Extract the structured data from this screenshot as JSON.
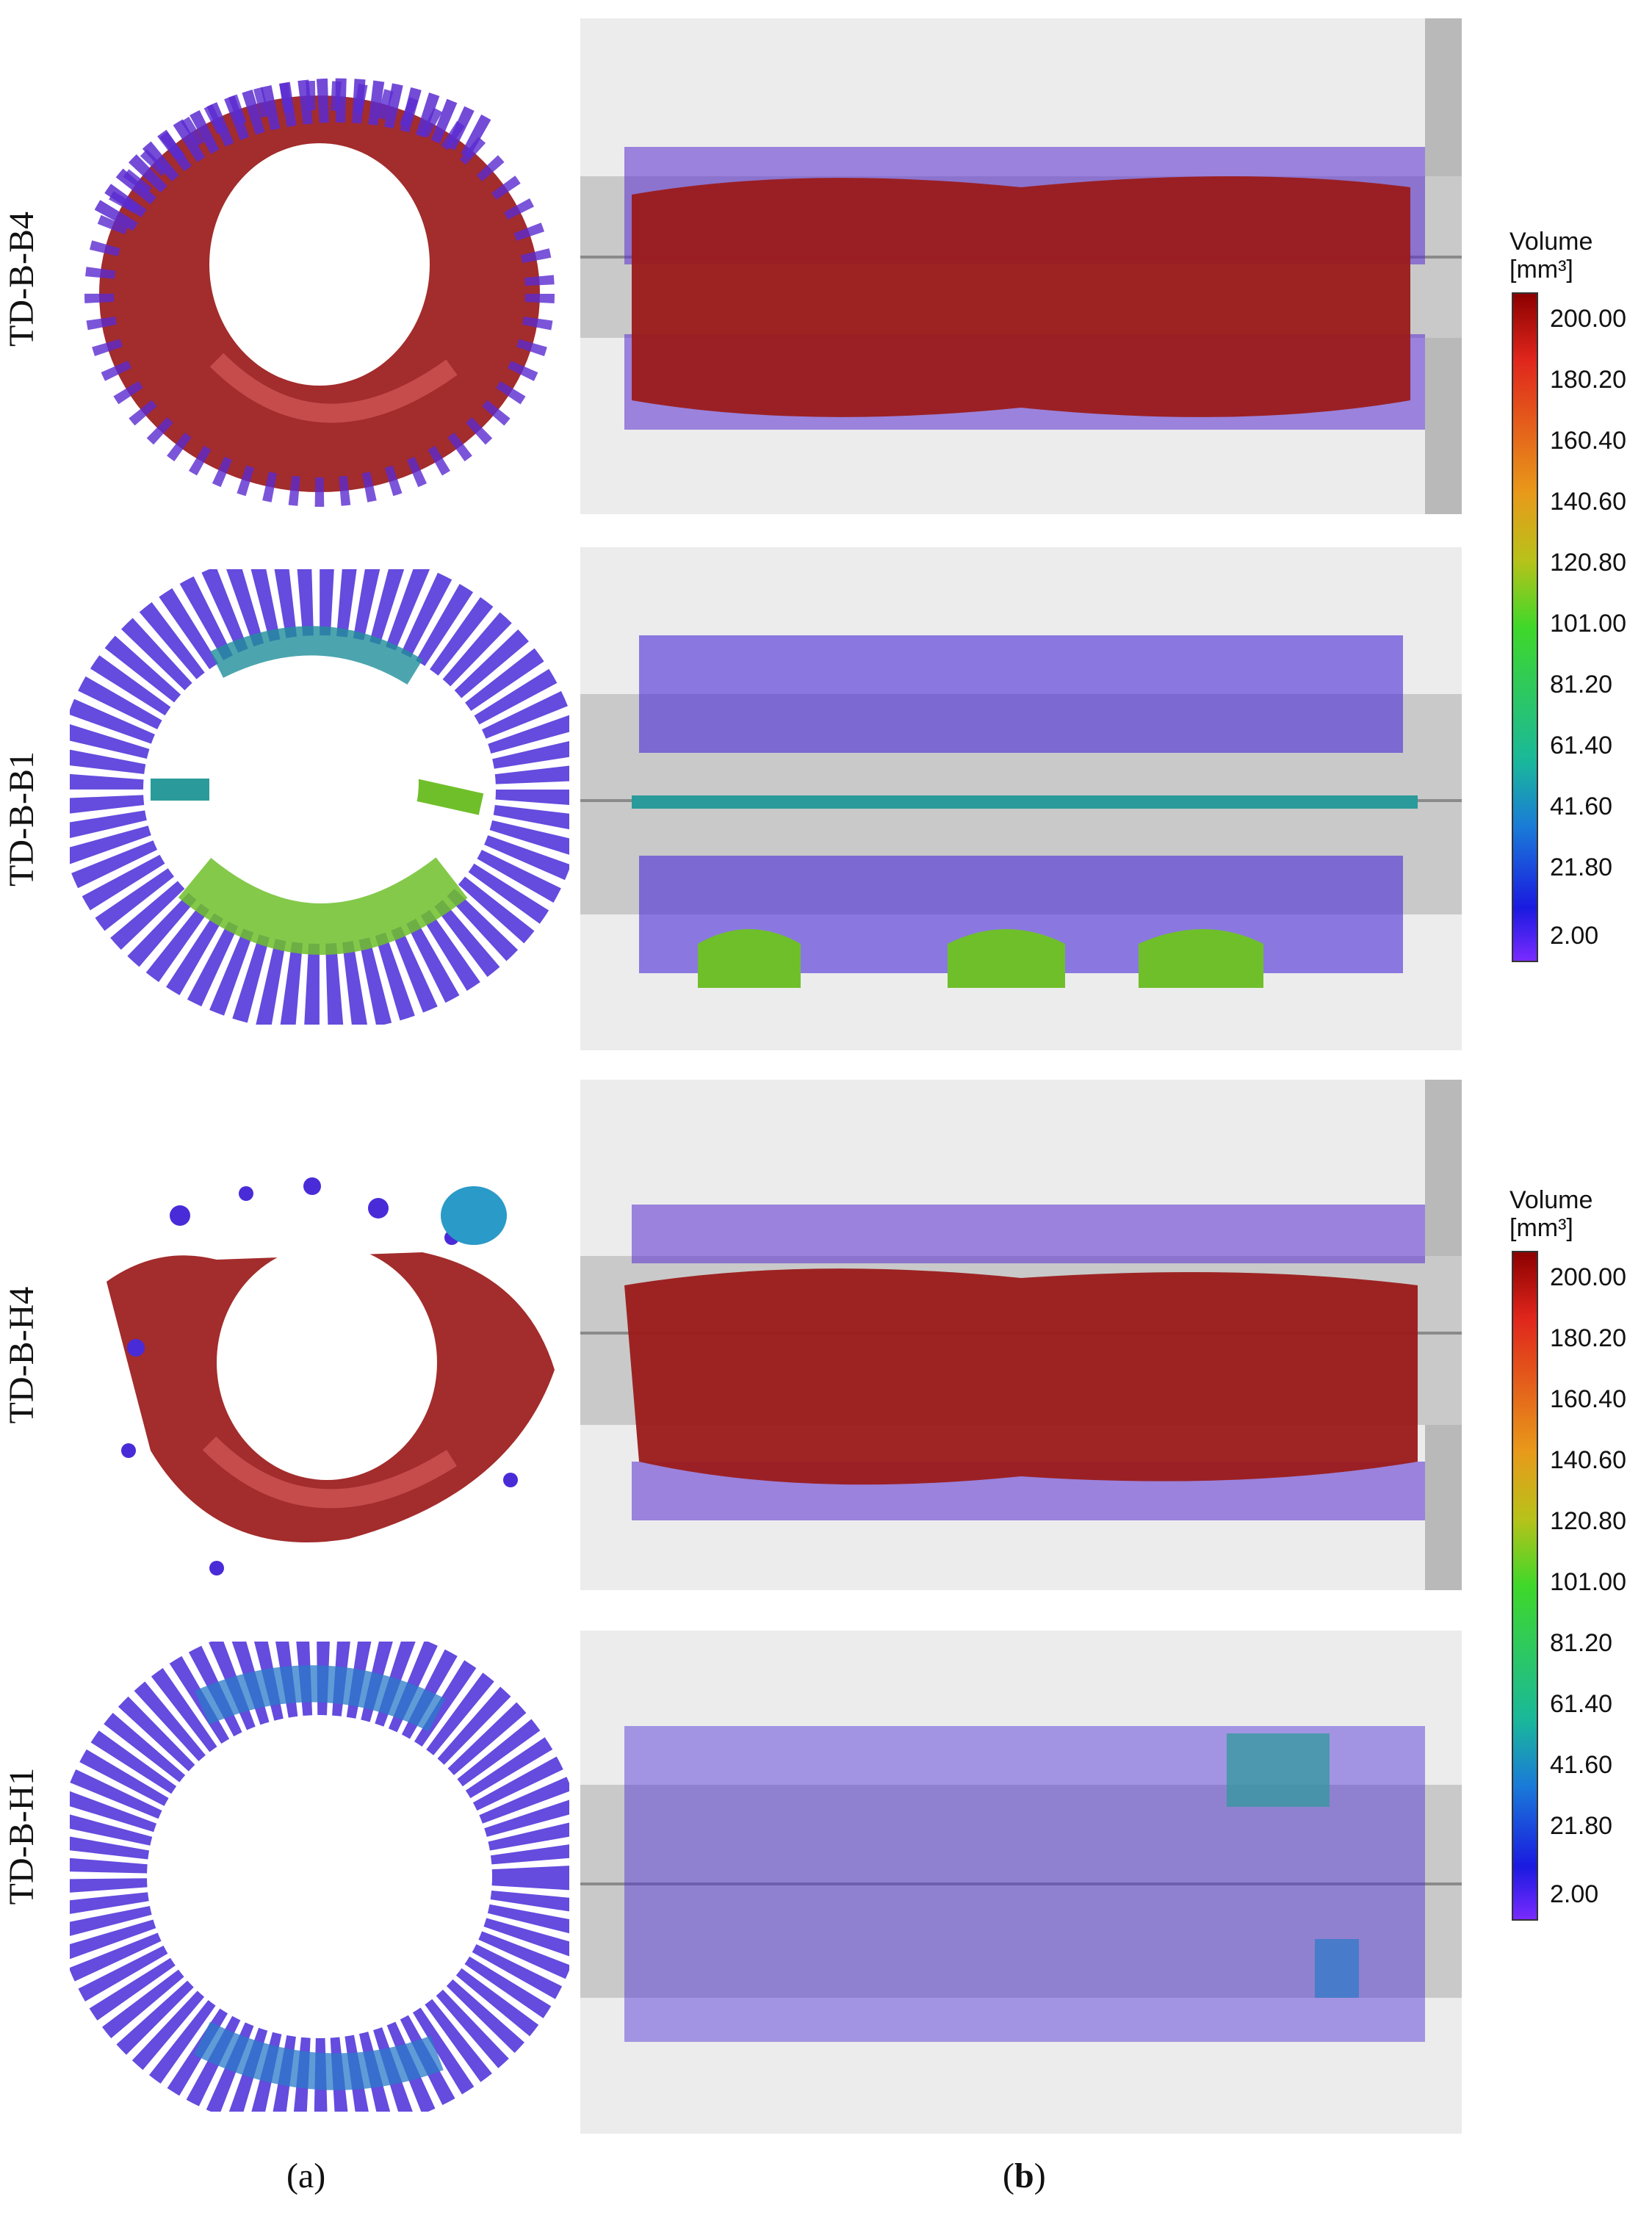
{
  "rows": [
    {
      "label": "TD-B-B4",
      "map": "red"
    },
    {
      "label": "TD-B-B1",
      "map": "green"
    },
    {
      "label": "TD-B-H4",
      "map": "red"
    },
    {
      "label": "TD-B-H1",
      "map": "blue"
    }
  ],
  "captions": {
    "a_open": "(",
    "a": "a",
    "a_close": ")",
    "b_open": "(",
    "b": "b",
    "b_close": ")"
  },
  "colorbars": [
    {
      "title_line1": "Volume",
      "title_line2": "[mm³]",
      "ticks": [
        "200.00",
        "180.20",
        "160.40",
        "140.60",
        "120.80",
        "101.00",
        "81.20",
        "61.40",
        "41.60",
        "21.80",
        "2.00"
      ]
    },
    {
      "title_line1": "Volume",
      "title_line2": "[mm³]",
      "ticks": [
        "200.00",
        "180.20",
        "160.40",
        "140.60",
        "120.80",
        "101.00",
        "81.20",
        "61.40",
        "41.60",
        "21.80",
        "2.00"
      ]
    }
  ],
  "colors": {
    "red": "#9b1a1a",
    "blue": "#4a2bd8",
    "teal": "#2a9a9a",
    "green": "#6fbf2a",
    "concrete": "#ececec",
    "rebar": "#c9c9c9"
  }
}
